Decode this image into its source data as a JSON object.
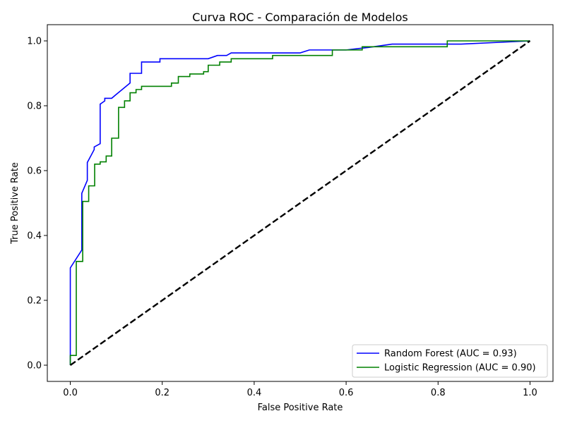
{
  "chart_data": {
    "type": "line",
    "title": "Curva ROC - Comparación de Modelos",
    "xlabel": "False Positive Rate",
    "ylabel": "True Positive Rate",
    "xlim": [
      -0.05,
      1.05
    ],
    "ylim": [
      -0.05,
      1.05
    ],
    "xticks": [
      0.0,
      0.2,
      0.4,
      0.6,
      0.8,
      1.0
    ],
    "yticks": [
      0.0,
      0.2,
      0.4,
      0.6,
      0.8,
      1.0
    ],
    "xtick_labels": [
      "0.0",
      "0.2",
      "0.4",
      "0.6",
      "0.8",
      "1.0"
    ],
    "ytick_labels": [
      "0.0",
      "0.2",
      "0.4",
      "0.6",
      "0.8",
      "1.0"
    ],
    "grid": false,
    "legend_position": "bottom-right",
    "series": [
      {
        "name": "Random Forest (AUC = 0.93)",
        "color": "#0000ff",
        "style": "solid",
        "x": [
          0.0,
          0.0,
          0.0,
          0.025,
          0.025,
          0.037,
          0.037,
          0.052,
          0.052,
          0.065,
          0.065,
          0.075,
          0.075,
          0.09,
          0.1,
          0.13,
          0.13,
          0.155,
          0.155,
          0.195,
          0.195,
          0.3,
          0.32,
          0.34,
          0.35,
          0.4,
          0.5,
          0.52,
          0.6,
          0.65,
          0.7,
          0.82,
          0.85,
          1.0
        ],
        "y": [
          0.0,
          0.03,
          0.3,
          0.355,
          0.53,
          0.57,
          0.625,
          0.665,
          0.673,
          0.683,
          0.805,
          0.815,
          0.823,
          0.823,
          0.835,
          0.87,
          0.9,
          0.9,
          0.935,
          0.935,
          0.945,
          0.945,
          0.955,
          0.955,
          0.963,
          0.963,
          0.963,
          0.972,
          0.972,
          0.98,
          0.99,
          0.99,
          0.99,
          1.0
        ]
      },
      {
        "name": "Logistic Regression (AUC = 0.90)",
        "color": "#008000",
        "style": "solid",
        "x": [
          0.0,
          0.0,
          0.013,
          0.013,
          0.027,
          0.027,
          0.04,
          0.04,
          0.053,
          0.053,
          0.065,
          0.065,
          0.078,
          0.078,
          0.09,
          0.09,
          0.105,
          0.105,
          0.118,
          0.118,
          0.13,
          0.13,
          0.143,
          0.143,
          0.155,
          0.155,
          0.22,
          0.22,
          0.235,
          0.235,
          0.26,
          0.26,
          0.29,
          0.29,
          0.3,
          0.3,
          0.325,
          0.325,
          0.35,
          0.35,
          0.44,
          0.44,
          0.57,
          0.57,
          0.635,
          0.635,
          0.82,
          0.82,
          1.0
        ],
        "y": [
          0.0,
          0.03,
          0.03,
          0.32,
          0.32,
          0.505,
          0.505,
          0.553,
          0.553,
          0.62,
          0.62,
          0.627,
          0.627,
          0.645,
          0.645,
          0.7,
          0.7,
          0.795,
          0.795,
          0.815,
          0.815,
          0.84,
          0.84,
          0.85,
          0.85,
          0.86,
          0.86,
          0.87,
          0.87,
          0.89,
          0.89,
          0.898,
          0.898,
          0.905,
          0.905,
          0.925,
          0.925,
          0.935,
          0.935,
          0.945,
          0.945,
          0.955,
          0.955,
          0.972,
          0.972,
          0.982,
          0.982,
          1.0,
          1.0
        ]
      },
      {
        "name": "",
        "color": "#000000",
        "style": "dashed",
        "x": [
          0.0,
          1.0
        ],
        "y": [
          0.0,
          1.0
        ]
      }
    ]
  }
}
